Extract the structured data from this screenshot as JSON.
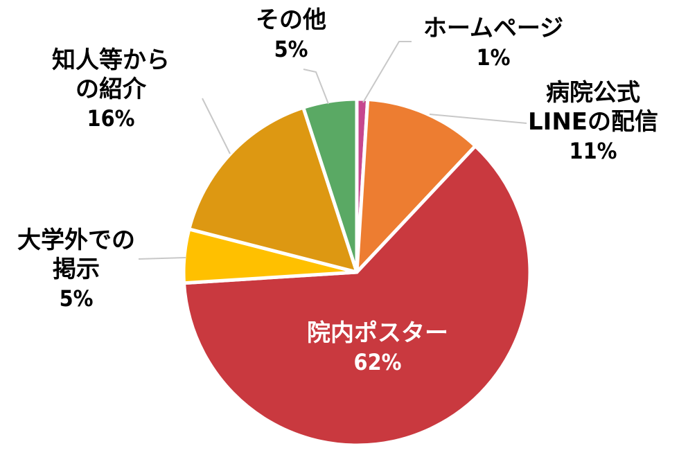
{
  "chart_data": {
    "type": "pie",
    "slices": [
      {
        "label": "ホームページ",
        "value": 1,
        "pct": "1%",
        "color": "#c6478e"
      },
      {
        "label": "病院公式\nLINEの配信",
        "value": 11,
        "pct": "11%",
        "color": "#ed7d31"
      },
      {
        "label": "院内ポスター",
        "value": 62,
        "pct": "62%",
        "color": "#c9393f"
      },
      {
        "label": "大学外での\n掲示",
        "value": 5,
        "pct": "5%",
        "color": "#ffc000"
      },
      {
        "label": "知人等から\nの紹介",
        "value": 16,
        "pct": "16%",
        "color": "#dd9812"
      },
      {
        "label": "その他",
        "value": 5,
        "pct": "5%",
        "color": "#5aa964"
      }
    ],
    "start_angle_deg": 0,
    "direction": "clockwise",
    "inside_label_color": "#ffffff",
    "outside_label_color": "#000000"
  }
}
